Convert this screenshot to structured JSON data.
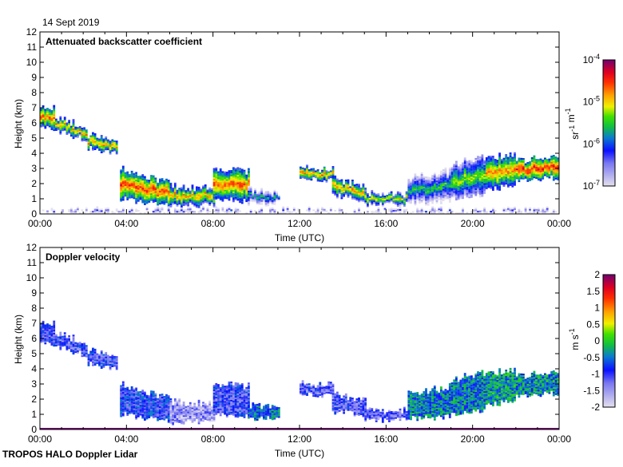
{
  "date_label": "14 Sept 2019",
  "footer_label": "TROPOS HALO Doppler Lidar",
  "chart_data": [
    {
      "type": "heatmap",
      "title": "Attenuated backscatter coefficient",
      "xlabel": "Time (UTC)",
      "ylabel": "Height (km)",
      "xlim": [
        0,
        24
      ],
      "ylim": [
        0,
        12
      ],
      "x_tick_labels": [
        "00:00",
        "04:00",
        "08:00",
        "12:00",
        "16:00",
        "20:00",
        "00:00"
      ],
      "y_tick_labels": [
        "0",
        "1",
        "2",
        "3",
        "4",
        "5",
        "6",
        "7",
        "8",
        "9",
        "10",
        "11",
        "12"
      ],
      "colorbar": {
        "scale": "log",
        "range_log10": [
          -7,
          -4
        ],
        "tick_labels": [
          {
            "base": "10",
            "exp": "-4"
          },
          {
            "base": "10",
            "exp": "-5"
          },
          {
            "base": "10",
            "exp": "-6"
          },
          {
            "base": "10",
            "exp": "-7"
          }
        ],
        "unit_parts": [
          {
            "base": "sr",
            "exp": "-1"
          },
          {
            "base": " m",
            "exp": "-1"
          }
        ]
      },
      "layers": [
        {
          "t": [
            0.0,
            0.7
          ],
          "base": [
            5.8,
            5.6
          ],
          "top": [
            7.1,
            6.9
          ],
          "peak": -4.6
        },
        {
          "t": [
            0.7,
            2.2
          ],
          "base": [
            5.5,
            4.8
          ],
          "top": [
            6.3,
            5.6
          ],
          "peak": -4.8
        },
        {
          "t": [
            2.2,
            3.6
          ],
          "base": [
            4.3,
            4.0
          ],
          "top": [
            5.2,
            4.8
          ],
          "peak": -4.7
        },
        {
          "t": [
            3.7,
            6.0
          ],
          "base": [
            1.0,
            0.5
          ],
          "top": [
            3.0,
            2.0
          ],
          "peak": -4.5
        },
        {
          "t": [
            6.0,
            8.0
          ],
          "base": [
            0.5,
            0.6
          ],
          "top": [
            1.8,
            1.6
          ],
          "peak": -4.8
        },
        {
          "t": [
            8.0,
            9.6
          ],
          "base": [
            1.0,
            0.8
          ],
          "top": [
            3.0,
            2.8
          ],
          "peak": -4.6
        },
        {
          "t": [
            9.6,
            11.0
          ],
          "base": [
            0.7,
            0.7
          ],
          "top": [
            1.6,
            1.4
          ],
          "peak": -5.6
        },
        {
          "t": [
            12.0,
            13.5
          ],
          "base": [
            2.3,
            2.2
          ],
          "top": [
            3.0,
            2.9
          ],
          "peak": -4.7
        },
        {
          "t": [
            13.5,
            15.0
          ],
          "base": [
            1.2,
            0.9
          ],
          "top": [
            2.3,
            1.8
          ],
          "peak": -4.8
        },
        {
          "t": [
            15.0,
            17.0
          ],
          "base": [
            0.6,
            0.6
          ],
          "top": [
            1.3,
            1.2
          ],
          "peak": -5.0
        },
        {
          "t": [
            17.0,
            19.0
          ],
          "base": [
            0.7,
            0.8
          ],
          "top": [
            2.3,
            2.8
          ],
          "peak": -5.5
        },
        {
          "t": [
            19.0,
            20.6
          ],
          "base": [
            1.0,
            1.2
          ],
          "top": [
            3.2,
            3.8
          ],
          "peak": -5.2
        },
        {
          "t": [
            20.6,
            22.0
          ],
          "base": [
            1.5,
            2.0
          ],
          "top": [
            3.6,
            4.0
          ],
          "peak": -4.7
        },
        {
          "t": [
            22.0,
            24.0
          ],
          "base": [
            2.2,
            2.4
          ],
          "top": [
            3.4,
            3.9
          ],
          "peak": -4.4
        },
        {
          "t": [
            0.0,
            24.0
          ],
          "base": [
            0.0,
            0.0
          ],
          "top": [
            0.2,
            0.2
          ],
          "peak": -6.2
        }
      ]
    },
    {
      "type": "heatmap",
      "title": "Doppler velocity",
      "xlabel": "Time (UTC)",
      "ylabel": "Height (km)",
      "xlim": [
        0,
        24
      ],
      "ylim": [
        0,
        12
      ],
      "x_tick_labels": [
        "00:00",
        "04:00",
        "08:00",
        "12:00",
        "16:00",
        "20:00",
        "00:00"
      ],
      "y_tick_labels": [
        "0",
        "1",
        "2",
        "3",
        "4",
        "5",
        "6",
        "7",
        "8",
        "9",
        "10",
        "11",
        "12"
      ],
      "colorbar": {
        "scale": "linear",
        "range": [
          -2,
          2
        ],
        "tick_labels": [
          "2",
          "1.5",
          "1",
          "0.5",
          "0",
          "-0.5",
          "-1",
          "-1.5",
          "-2"
        ],
        "unit_parts": [
          {
            "base": "m s",
            "exp": "-1"
          }
        ]
      },
      "layers": [
        {
          "t": [
            0.0,
            0.7
          ],
          "base": [
            5.8,
            5.6
          ],
          "top": [
            7.1,
            6.9
          ],
          "mean": -1.0
        },
        {
          "t": [
            0.7,
            2.2
          ],
          "base": [
            5.5,
            4.8
          ],
          "top": [
            6.3,
            5.6
          ],
          "mean": -1.1
        },
        {
          "t": [
            2.2,
            3.6
          ],
          "base": [
            4.3,
            4.0
          ],
          "top": [
            5.2,
            4.8
          ],
          "mean": -1.0
        },
        {
          "t": [
            3.7,
            6.0
          ],
          "base": [
            1.0,
            0.5
          ],
          "top": [
            3.0,
            2.0
          ],
          "mean": -0.9
        },
        {
          "t": [
            6.0,
            8.0
          ],
          "base": [
            0.4,
            0.6
          ],
          "top": [
            1.8,
            1.6
          ],
          "mean": -1.5
        },
        {
          "t": [
            8.0,
            9.6
          ],
          "base": [
            1.0,
            0.8
          ],
          "top": [
            3.0,
            2.8
          ],
          "mean": -1.0
        },
        {
          "t": [
            9.6,
            11.0
          ],
          "base": [
            0.7,
            0.7
          ],
          "top": [
            1.6,
            1.4
          ],
          "mean": -0.6
        },
        {
          "t": [
            12.0,
            13.5
          ],
          "base": [
            2.3,
            2.2
          ],
          "top": [
            3.0,
            2.9
          ],
          "mean": -1.1
        },
        {
          "t": [
            13.5,
            15.0
          ],
          "base": [
            1.2,
            0.9
          ],
          "top": [
            2.3,
            1.8
          ],
          "mean": -1.1
        },
        {
          "t": [
            15.0,
            17.0
          ],
          "base": [
            0.6,
            0.6
          ],
          "top": [
            1.3,
            1.2
          ],
          "mean": -1.2
        },
        {
          "t": [
            17.0,
            19.0
          ],
          "base": [
            0.7,
            0.8
          ],
          "top": [
            2.3,
            2.8
          ],
          "mean": -0.5
        },
        {
          "t": [
            19.0,
            20.6
          ],
          "base": [
            1.0,
            1.2
          ],
          "top": [
            3.2,
            3.8
          ],
          "mean": -0.5
        },
        {
          "t": [
            20.6,
            22.0
          ],
          "base": [
            1.5,
            2.0
          ],
          "top": [
            3.6,
            4.0
          ],
          "mean": -0.3
        },
        {
          "t": [
            22.0,
            24.0
          ],
          "base": [
            2.2,
            2.4
          ],
          "top": [
            3.4,
            3.9
          ],
          "mean": -0.4
        }
      ]
    }
  ]
}
